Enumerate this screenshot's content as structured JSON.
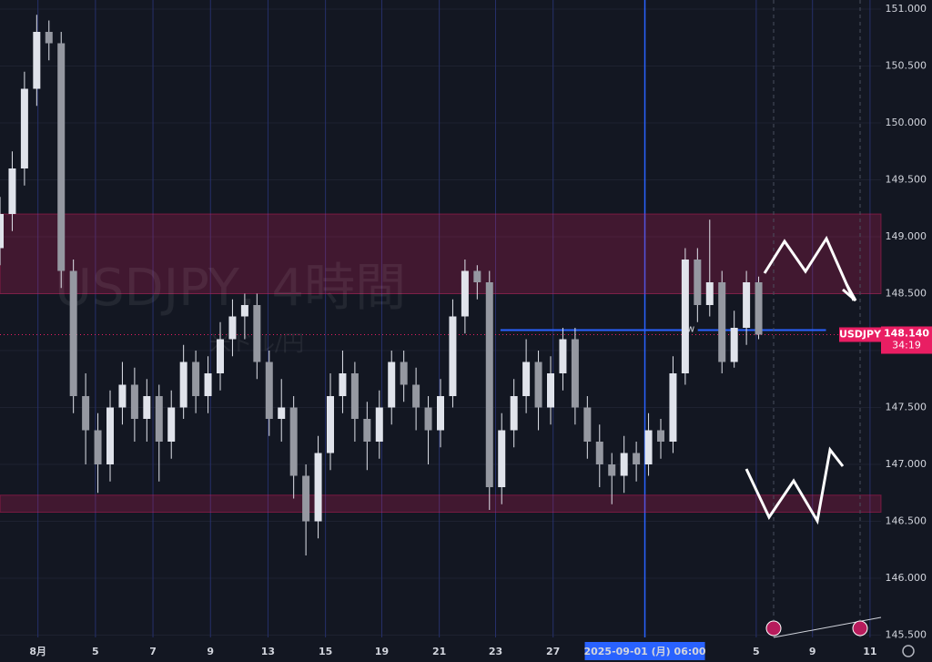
{
  "chart_data": {
    "type": "candlestick",
    "symbol": "USDJPY",
    "title": "USDJPY, 4時間",
    "subtitle": "米ドル/円",
    "x": [
      0,
      1,
      2,
      3,
      4,
      5,
      6,
      7,
      8,
      9,
      10,
      11,
      12,
      13,
      14,
      15,
      16,
      17,
      18,
      19,
      20,
      21,
      22,
      23,
      24,
      25,
      26,
      27,
      28,
      29,
      30,
      31,
      32,
      33,
      34,
      35,
      36,
      37,
      38,
      39,
      40,
      41,
      42,
      43,
      44,
      45,
      46,
      47,
      48,
      49,
      50,
      51,
      52,
      53,
      54,
      55,
      56,
      57,
      58,
      59,
      60,
      61,
      62
    ],
    "open": [
      148.9,
      149.2,
      149.6,
      150.3,
      150.8,
      150.7,
      148.7,
      147.6,
      147.3,
      147.0,
      147.5,
      147.7,
      147.4,
      147.6,
      147.2,
      147.5,
      147.9,
      147.6,
      147.8,
      148.1,
      148.3,
      148.4,
      147.9,
      147.4,
      147.5,
      146.9,
      146.5,
      147.1,
      147.6,
      147.8,
      147.4,
      147.2,
      147.5,
      147.9,
      147.7,
      147.5,
      147.3,
      147.6,
      148.3,
      148.7,
      148.6,
      146.8,
      147.3,
      147.6,
      147.9,
      147.5,
      147.8,
      148.1,
      147.5,
      147.2,
      147.0,
      146.9,
      147.1,
      147.0,
      147.3,
      147.2,
      147.8,
      148.8,
      148.4,
      148.6,
      147.9,
      148.2,
      148.6
    ],
    "high": [
      149.35,
      149.75,
      150.45,
      150.95,
      150.9,
      150.8,
      148.8,
      147.8,
      147.45,
      147.65,
      147.9,
      147.85,
      147.75,
      147.7,
      147.65,
      148.05,
      148.0,
      147.95,
      148.25,
      148.45,
      148.5,
      148.5,
      148.0,
      147.75,
      147.6,
      147.0,
      147.25,
      147.8,
      148.0,
      147.9,
      147.55,
      147.65,
      148.0,
      148.0,
      147.85,
      147.6,
      147.75,
      148.45,
      148.8,
      148.75,
      148.7,
      147.45,
      147.75,
      148.1,
      148.0,
      147.95,
      148.2,
      148.2,
      147.6,
      147.35,
      147.1,
      147.25,
      147.2,
      147.45,
      147.4,
      147.95,
      148.9,
      148.9,
      149.15,
      148.7,
      148.35,
      148.7,
      148.65
    ],
    "low": [
      148.75,
      149.05,
      149.45,
      150.15,
      150.55,
      148.55,
      147.45,
      147.0,
      146.75,
      146.85,
      147.35,
      147.2,
      147.2,
      146.85,
      147.05,
      147.4,
      147.45,
      147.45,
      147.65,
      147.95,
      148.1,
      147.75,
      147.25,
      147.2,
      146.7,
      146.2,
      146.35,
      146.95,
      147.45,
      147.2,
      146.95,
      147.05,
      147.35,
      147.55,
      147.3,
      147.0,
      147.15,
      147.5,
      148.15,
      148.45,
      146.6,
      146.65,
      147.15,
      147.45,
      147.3,
      147.35,
      147.65,
      147.35,
      147.05,
      146.8,
      146.65,
      146.75,
      146.85,
      146.9,
      147.05,
      147.1,
      147.7,
      148.25,
      148.3,
      147.8,
      147.85,
      148.05,
      148.1
    ],
    "close": [
      149.2,
      149.6,
      150.3,
      150.8,
      150.7,
      148.7,
      147.6,
      147.3,
      147.0,
      147.5,
      147.7,
      147.4,
      147.6,
      147.2,
      147.5,
      147.9,
      147.6,
      147.8,
      148.1,
      148.3,
      148.4,
      147.9,
      147.4,
      147.5,
      146.9,
      146.5,
      147.1,
      147.6,
      147.8,
      147.4,
      147.2,
      147.5,
      147.9,
      147.7,
      147.5,
      147.3,
      147.6,
      148.3,
      148.7,
      148.6,
      146.8,
      147.3,
      147.6,
      147.9,
      147.5,
      147.8,
      148.1,
      147.5,
      147.2,
      147.0,
      146.9,
      147.1,
      147.0,
      147.3,
      147.2,
      147.8,
      148.8,
      148.4,
      148.6,
      147.9,
      148.2,
      148.6,
      148.14
    ],
    "color": "#e0e3eb",
    "xlim": [
      0,
      72
    ],
    "xticks": [
      {
        "value": 3.1,
        "label": "8月"
      },
      {
        "value": 7.8,
        "label": "5"
      },
      {
        "value": 12.5,
        "label": "7"
      },
      {
        "value": 17.2,
        "label": "9"
      },
      {
        "value": 21.9,
        "label": "13"
      },
      {
        "value": 26.6,
        "label": "15"
      },
      {
        "value": 31.2,
        "label": "19"
      },
      {
        "value": 35.9,
        "label": "21"
      },
      {
        "value": 40.5,
        "label": "23"
      },
      {
        "value": 45.2,
        "label": "27"
      },
      {
        "value": 52.7,
        "label": "2025-09-01 (月)   06:00"
      },
      {
        "value": 61.8,
        "label": "5"
      },
      {
        "value": 66.4,
        "label": "9"
      },
      {
        "value": 71.1,
        "label": "11"
      }
    ],
    "highlight_xtick": 10,
    "ylim": [
      145.48,
      151.08
    ],
    "yticks": [
      {
        "value": 145.5,
        "label": "145.500"
      },
      {
        "value": 146,
        "label": "146.000"
      },
      {
        "value": 146.5,
        "label": "146.500"
      },
      {
        "value": 147,
        "label": "147.000"
      },
      {
        "value": 147.5,
        "label": "147.500"
      },
      {
        "value": 148,
        "label": "148.000"
      },
      {
        "value": 148.5,
        "label": "148.500"
      },
      {
        "value": 149,
        "label": "149.000"
      },
      {
        "value": 149.5,
        "label": "149.500"
      },
      {
        "value": 150,
        "label": "150.000"
      },
      {
        "value": 150.5,
        "label": "150.500"
      },
      {
        "value": 151,
        "label": "151.000"
      }
    ],
    "zones": [
      {
        "from": 148.5,
        "to": 149.2
      },
      {
        "from": 146.58,
        "to": 146.73
      }
    ],
    "level": {
      "value": 148.18,
      "label": "w",
      "x_range": [
        40.9,
        67.5
      ]
    },
    "last_price": {
      "value": 148.14,
      "label": "148.140"
    },
    "countdown": "34:19"
  }
}
